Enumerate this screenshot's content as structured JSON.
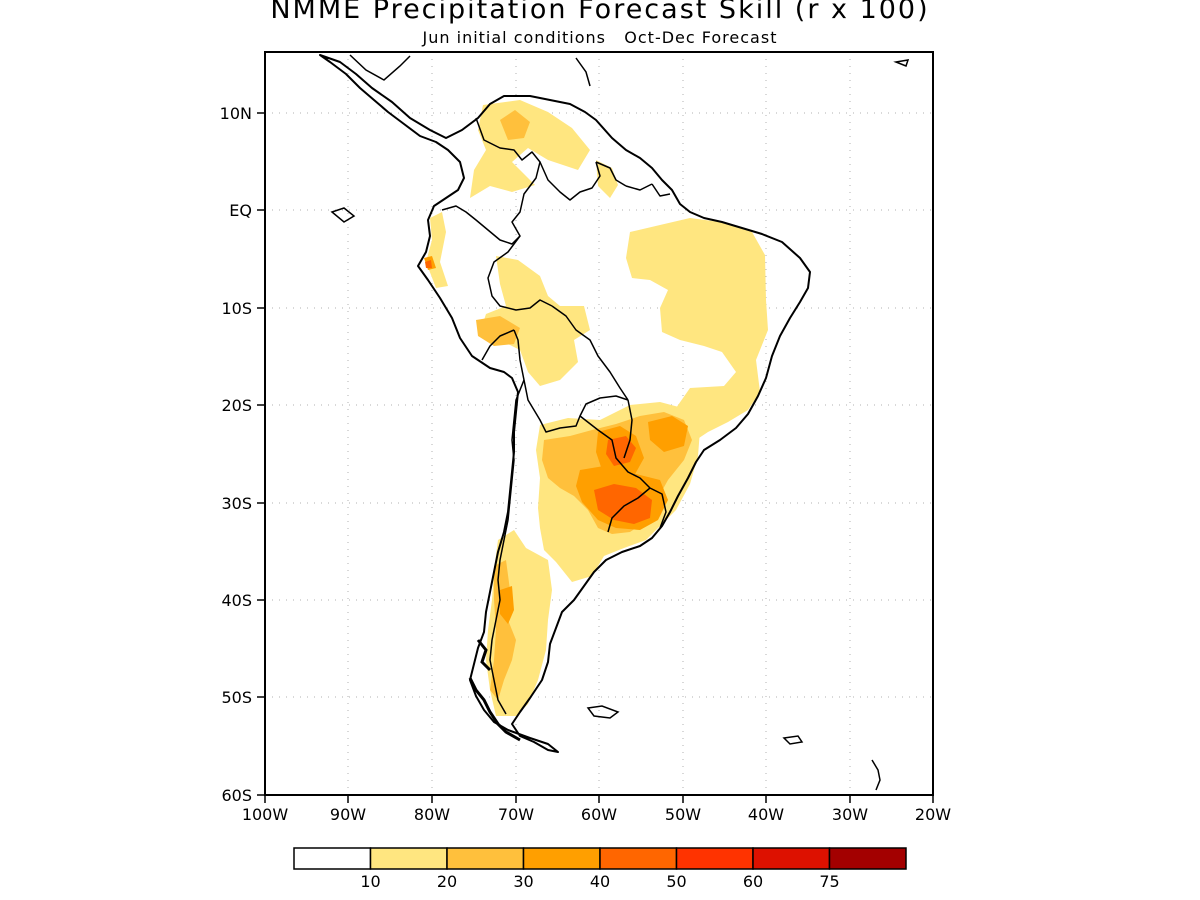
{
  "title": "NMME Precipitation Forecast Skill (r x 100)",
  "subtitle": "Jun initial conditions   Oct-Dec Forecast",
  "lat_labels": [
    "10N",
    "EQ",
    "10S",
    "20S",
    "30S",
    "40S",
    "50S",
    "60S"
  ],
  "lon_labels": [
    "100W",
    "90W",
    "80W",
    "70W",
    "60W",
    "50W",
    "40W",
    "30W",
    "20W"
  ],
  "colorbar": {
    "colors": [
      "#ffffff",
      "#ffe680",
      "#ffc03c",
      "#ff9f00",
      "#ff6600",
      "#ff3300",
      "#dd1100",
      "#a30000"
    ],
    "labels": [
      "10",
      "20",
      "30",
      "40",
      "50",
      "60",
      "75"
    ]
  }
}
